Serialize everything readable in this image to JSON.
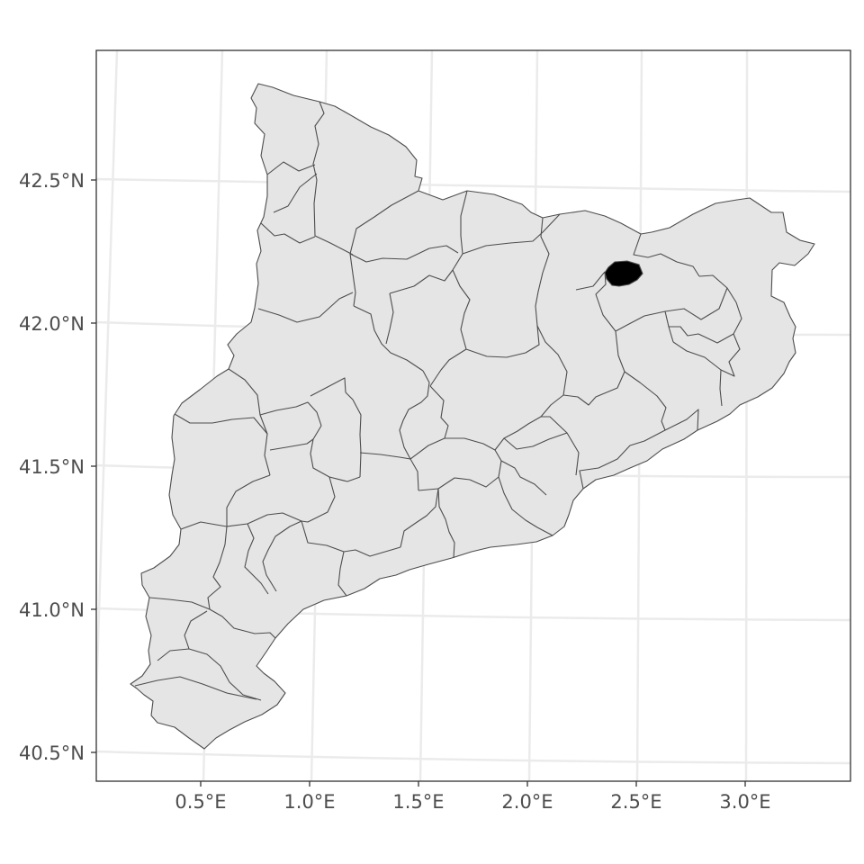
{
  "map": {
    "type": "choropleth",
    "region": "Catalonia",
    "highlighted_region_count": 1,
    "colors": {
      "region_fill": "#e5e5e5",
      "region_border": "#4d4d4d",
      "highlight_fill": "#000000",
      "grid": "#ebebeb",
      "panel_border": "#333333",
      "background": "#ffffff"
    },
    "grid": true,
    "legend": "none",
    "x_axis": {
      "ticks": [
        0.5,
        1.0,
        1.5,
        2.0,
        2.5,
        3.0
      ],
      "tick_labels": [
        "0.5°E",
        "1.0°E",
        "1.5°E",
        "2.0°E",
        "2.5°E",
        "3.0°E"
      ]
    },
    "y_axis": {
      "ticks": [
        40.5,
        41.0,
        41.5,
        42.0,
        42.5
      ],
      "tick_labels": [
        "40.5°N",
        "41.0°N",
        "41.5°N",
        "42.0°N",
        "42.5°N"
      ]
    },
    "highlighted_region": {
      "lon": 2.42,
      "lat": 42.18
    }
  }
}
